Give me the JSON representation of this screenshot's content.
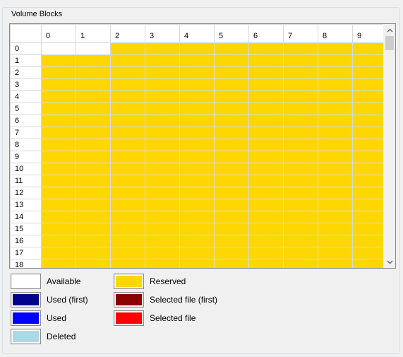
{
  "group": {
    "title": "Volume Blocks"
  },
  "grid": {
    "columns": [
      "0",
      "1",
      "2",
      "3",
      "4",
      "5",
      "6",
      "7",
      "8",
      "9"
    ],
    "rows": [
      "0",
      "1",
      "2",
      "3",
      "4",
      "5",
      "6",
      "7",
      "8",
      "9",
      "10",
      "11",
      "12",
      "13",
      "14",
      "15",
      "16",
      "17",
      "18"
    ],
    "first_available_count": 2,
    "default_state": "reserved"
  },
  "legend": [
    {
      "key": "available",
      "label": "Available",
      "color": "#ffffff"
    },
    {
      "key": "used-first",
      "label": "Used (first)",
      "color": "#00008b"
    },
    {
      "key": "used",
      "label": "Used",
      "color": "#0000ff"
    },
    {
      "key": "deleted",
      "label": "Deleted",
      "color": "#add8e6"
    },
    {
      "key": "reserved",
      "label": "Reserved",
      "color": "#ffd700"
    },
    {
      "key": "selected-first",
      "label": "Selected file (first)",
      "color": "#8b0000"
    },
    {
      "key": "selected",
      "label": "Selected file",
      "color": "#ff0000"
    }
  ],
  "icons": {
    "scroll_up": "chevron-up-icon",
    "scroll_down": "chevron-down-icon"
  }
}
